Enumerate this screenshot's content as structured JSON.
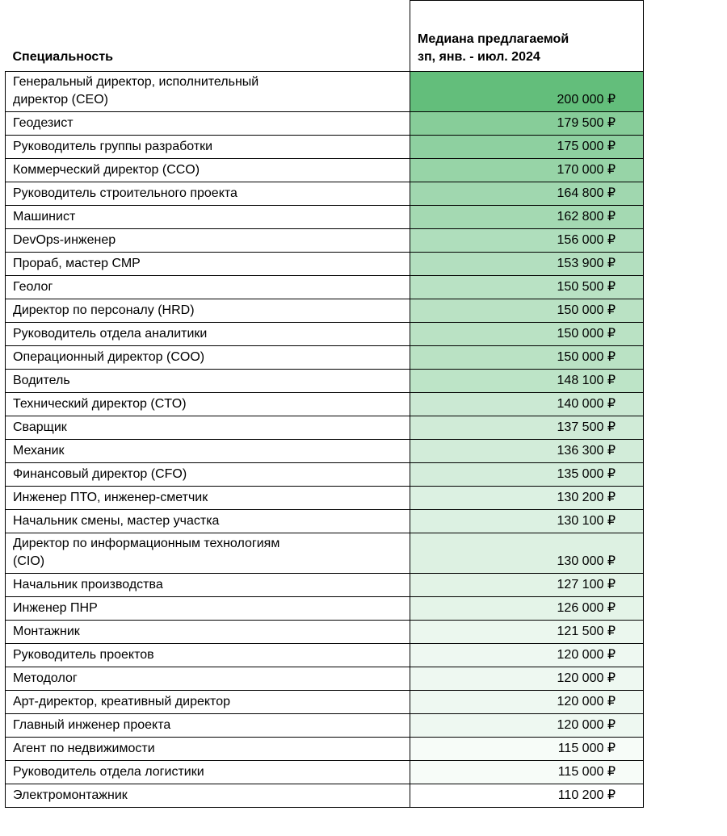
{
  "header": {
    "specialty_label": "Специальность",
    "median_label_line1": "Медиана предлагаемой",
    "median_label_line2": "зп,  янв. - июл. 2024"
  },
  "chart_data": {
    "type": "table",
    "title": "Медиана предлагаемой зп по специальностям, янв. - июл. 2024",
    "columns": [
      "Специальность",
      "Медиана предлагаемой зп, янв. - июл. 2024"
    ],
    "unit": "₽",
    "color_scale": {
      "min_value": 110200,
      "max_value": 200000,
      "min_color": "#ffffff",
      "max_color": "#63be7b"
    },
    "rows": [
      {
        "specialty": "Генеральный директор, исполнительный\nдиректор (CEO)",
        "value": 200000,
        "label": "200 000 ₽"
      },
      {
        "specialty": "Геодезист",
        "value": 179500,
        "label": "179 500 ₽"
      },
      {
        "specialty": "Руководитель группы разработки",
        "value": 175000,
        "label": "175 000 ₽"
      },
      {
        "specialty": "Коммерческий директор (CCO)",
        "value": 170000,
        "label": "170 000 ₽"
      },
      {
        "specialty": "Руководитель строительного проекта",
        "value": 164800,
        "label": "164 800 ₽"
      },
      {
        "specialty": "Машинист",
        "value": 162800,
        "label": "162 800 ₽"
      },
      {
        "specialty": "DevOps-инженер",
        "value": 156000,
        "label": "156 000 ₽"
      },
      {
        "specialty": "Прораб, мастер СМР",
        "value": 153900,
        "label": "153 900 ₽"
      },
      {
        "specialty": "Геолог",
        "value": 150500,
        "label": "150 500 ₽"
      },
      {
        "specialty": "Директор по персоналу (HRD)",
        "value": 150000,
        "label": "150 000 ₽"
      },
      {
        "specialty": "Руководитель отдела аналитики",
        "value": 150000,
        "label": "150 000 ₽"
      },
      {
        "specialty": "Операционный директор (COO)",
        "value": 150000,
        "label": "150 000 ₽"
      },
      {
        "specialty": "Водитель",
        "value": 148100,
        "label": "148 100 ₽"
      },
      {
        "specialty": "Технический директор (CTO)",
        "value": 140000,
        "label": "140 000 ₽"
      },
      {
        "specialty": "Сварщик",
        "value": 137500,
        "label": "137 500 ₽"
      },
      {
        "specialty": "Механик",
        "value": 136300,
        "label": "136 300 ₽"
      },
      {
        "specialty": "Финансовый директор (CFO)",
        "value": 135000,
        "label": "135 000 ₽"
      },
      {
        "specialty": "Инженер ПТО, инженер-сметчик",
        "value": 130200,
        "label": "130 200 ₽"
      },
      {
        "specialty": "Начальник смены, мастер участка",
        "value": 130100,
        "label": "130 100 ₽"
      },
      {
        "specialty": "Директор по информационным технологиям\n(CIO)",
        "value": 130000,
        "label": "130 000 ₽"
      },
      {
        "specialty": "Начальник производства",
        "value": 127100,
        "label": "127 100 ₽"
      },
      {
        "specialty": "Инженер ПНР",
        "value": 126000,
        "label": "126 000 ₽"
      },
      {
        "specialty": "Монтажник",
        "value": 121500,
        "label": "121 500 ₽"
      },
      {
        "specialty": "Руководитель проектов",
        "value": 120000,
        "label": "120 000 ₽"
      },
      {
        "specialty": "Методолог",
        "value": 120000,
        "label": "120 000 ₽"
      },
      {
        "specialty": "Арт-директор, креативный директор",
        "value": 120000,
        "label": "120 000 ₽"
      },
      {
        "specialty": "Главный инженер проекта",
        "value": 120000,
        "label": "120 000 ₽"
      },
      {
        "specialty": "Агент по недвижимости",
        "value": 115000,
        "label": "115 000 ₽"
      },
      {
        "specialty": "Руководитель отдела логистики",
        "value": 115000,
        "label": "115 000 ₽"
      },
      {
        "specialty": "Электромонтажник",
        "value": 110200,
        "label": "110 200 ₽"
      }
    ]
  }
}
